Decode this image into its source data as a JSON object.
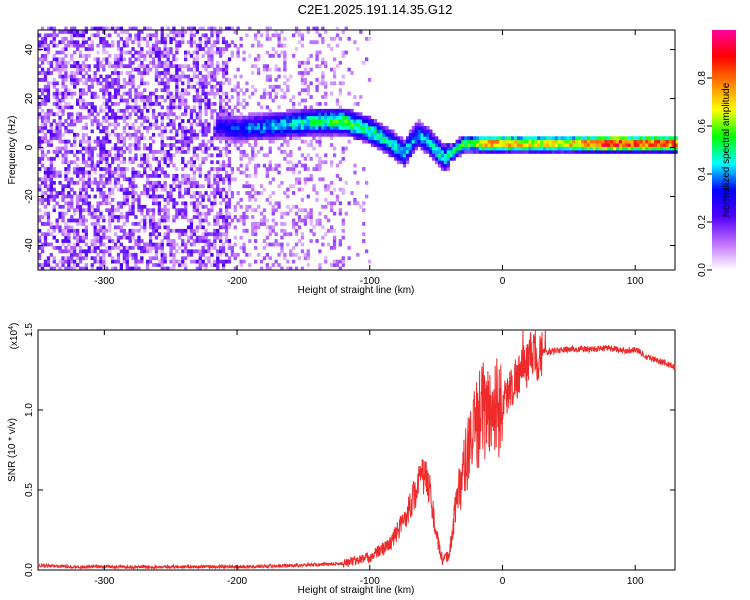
{
  "title": "C2E1.2025.191.14.35.G12",
  "chart_data": [
    {
      "type": "heatmap",
      "xlabel": "Height of straight line (km)",
      "ylabel": "Frequency (Hz)",
      "xlim": [
        -350,
        130
      ],
      "ylim": [
        -50,
        48
      ],
      "x_ticks": [
        -300,
        -200,
        -100,
        0,
        100
      ],
      "y_ticks": [
        -40,
        -20,
        0,
        20,
        40
      ],
      "colorbar": {
        "label": "Normalized spectral amplitude",
        "range": [
          0,
          1
        ],
        "ticks": [
          "0.0",
          "0.2",
          "0.4",
          "0.6",
          "0.8"
        ],
        "colors": [
          "#ffffff",
          "#c070ff",
          "#5000ff",
          "#0000ff",
          "#00ffff",
          "#00ff00",
          "#ffff00",
          "#ff8000",
          "#ff0000",
          "#ff00a0"
        ]
      },
      "ridge": [
        {
          "x": -215,
          "f": 8,
          "a": 0.3
        },
        {
          "x": -200,
          "f": 7,
          "a": 0.35
        },
        {
          "x": -180,
          "f": 8,
          "a": 0.4
        },
        {
          "x": -160,
          "f": 9,
          "a": 0.45
        },
        {
          "x": -140,
          "f": 10,
          "a": 0.5
        },
        {
          "x": -120,
          "f": 10,
          "a": 0.55
        },
        {
          "x": -100,
          "f": 6,
          "a": 0.5
        },
        {
          "x": -85,
          "f": 1,
          "a": 0.45
        },
        {
          "x": -75,
          "f": -3,
          "a": 0.45
        },
        {
          "x": -65,
          "f": 5,
          "a": 0.4
        },
        {
          "x": -55,
          "f": 1,
          "a": 0.45
        },
        {
          "x": -45,
          "f": -5,
          "a": 0.45
        },
        {
          "x": -30,
          "f": 1,
          "a": 0.55
        },
        {
          "x": -10,
          "f": 1,
          "a": 0.75
        },
        {
          "x": 20,
          "f": 1,
          "a": 0.7
        },
        {
          "x": 50,
          "f": 1,
          "a": 0.72
        },
        {
          "x": 80,
          "f": 1,
          "a": 0.92
        },
        {
          "x": 100,
          "f": 1,
          "a": 0.85
        },
        {
          "x": 130,
          "f": 1,
          "a": 0.8
        }
      ]
    },
    {
      "type": "line",
      "xlabel": "Height of straight line (km)",
      "ylabel": "SNR (10 * v/v)",
      "y_multiplier": "(x10",
      "y_multiplier_exp": "4",
      "xlim": [
        -350,
        130
      ],
      "ylim": [
        0,
        1.5
      ],
      "x_ticks": [
        -300,
        -200,
        -100,
        0,
        100
      ],
      "y_ticks": [
        "0.0",
        "0.5",
        "1.0",
        "1.5"
      ],
      "series": [
        {
          "color": "#ee2a2a",
          "x": [
            -350,
            -320,
            -300,
            -250,
            -200,
            -150,
            -120,
            -100,
            -85,
            -75,
            -65,
            -60,
            -55,
            -50,
            -45,
            -40,
            -35,
            -30,
            -25,
            -20,
            -15,
            -10,
            -5,
            0,
            10,
            20,
            30,
            40,
            50,
            60,
            70,
            80,
            90,
            100,
            110,
            120,
            130
          ],
          "y": [
            0.03,
            0.02,
            0.02,
            0.02,
            0.02,
            0.03,
            0.04,
            0.08,
            0.16,
            0.3,
            0.5,
            0.6,
            0.52,
            0.22,
            0.05,
            0.1,
            0.42,
            0.6,
            0.76,
            0.88,
            1.02,
            0.98,
            1.02,
            1.04,
            1.2,
            1.3,
            1.36,
            1.37,
            1.38,
            1.38,
            1.38,
            1.39,
            1.37,
            1.38,
            1.33,
            1.3,
            1.27
          ]
        }
      ]
    }
  ]
}
